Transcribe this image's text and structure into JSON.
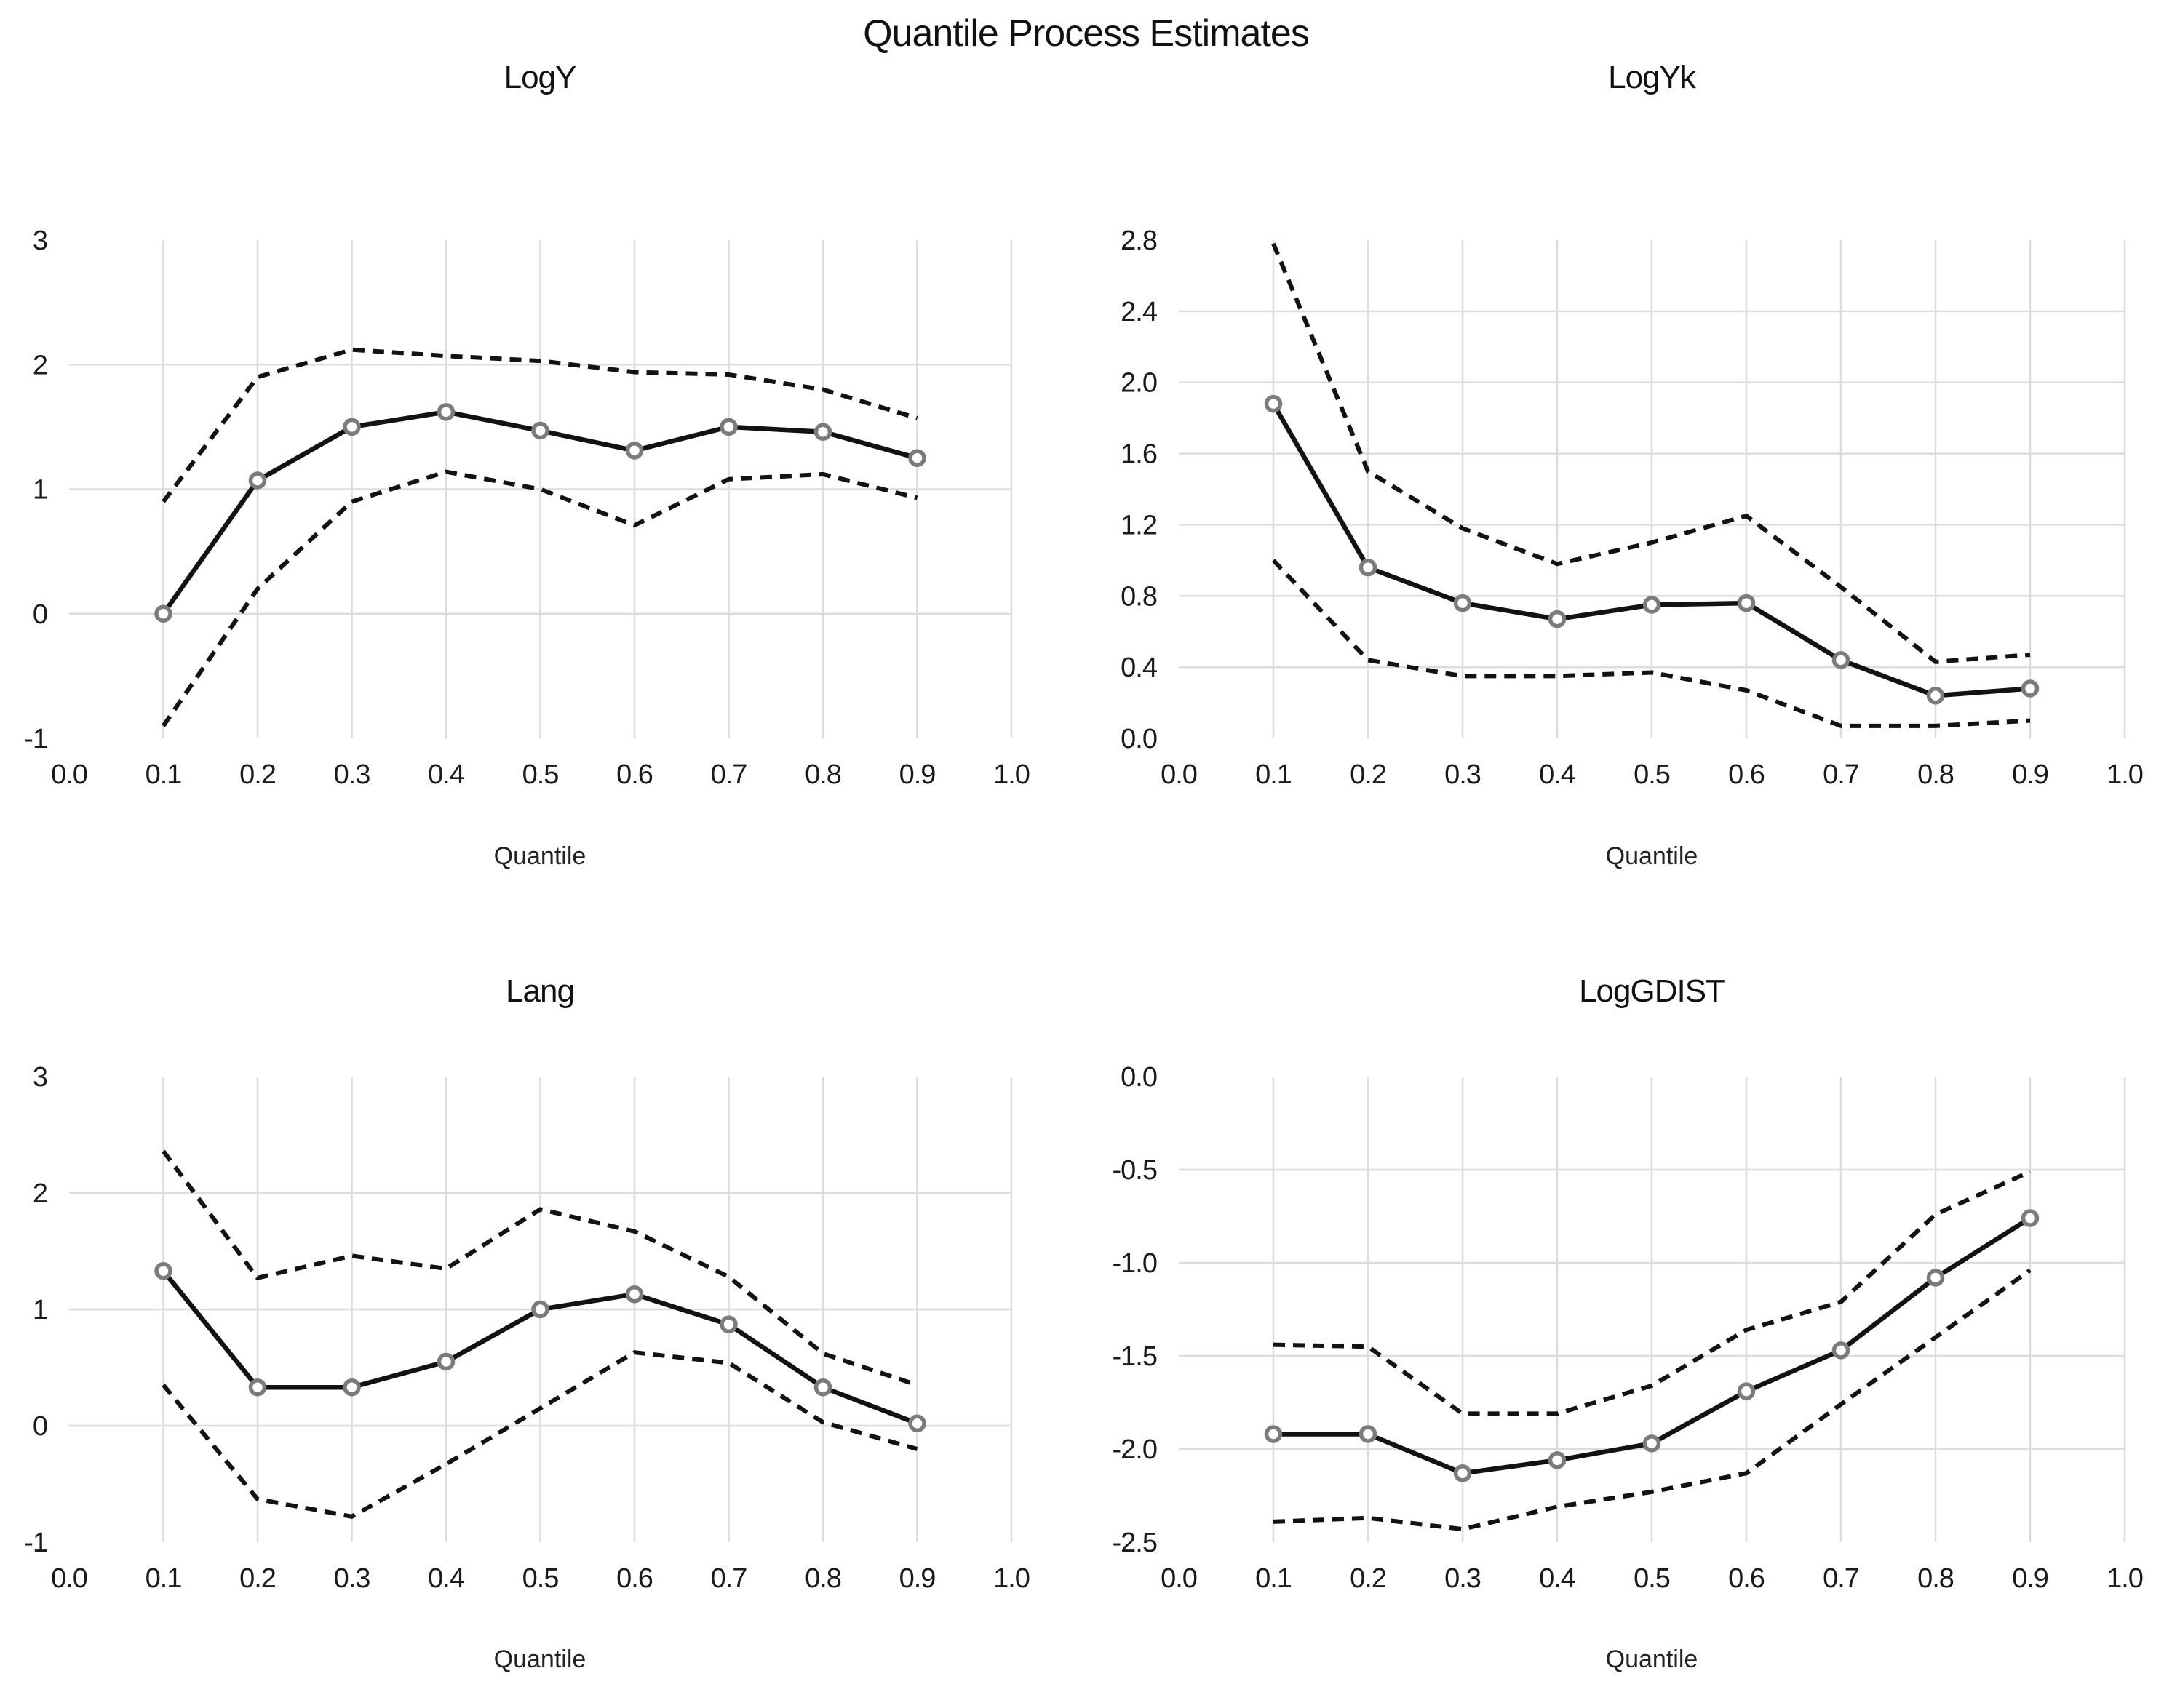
{
  "page": {
    "title": "Quantile Process Estimates"
  },
  "colors": {
    "background": "#ffffff",
    "line": "#121212",
    "band_dash": "#121212",
    "marker_ring": "#7b7b7b",
    "marker_fill": "#ffffff",
    "grid": "#dcdcdc",
    "text": "#1a1a1a"
  },
  "chart_data": [
    {
      "id": "logy",
      "type": "line",
      "title": "LogY",
      "x_label": "Quantile",
      "x": [
        0.1,
        0.2,
        0.3,
        0.4,
        0.5,
        0.6,
        0.7,
        0.8,
        0.9
      ],
      "xticks": [
        0.0,
        0.1,
        0.2,
        0.3,
        0.4,
        0.5,
        0.6,
        0.7,
        0.8,
        0.9,
        1.0
      ],
      "xtick_labels": [
        "0.0",
        "0.1",
        "0.2",
        "0.3",
        "0.4",
        "0.5",
        "0.6",
        "0.7",
        "0.8",
        "0.9",
        "1.0"
      ],
      "ylim": [
        -1,
        3
      ],
      "yticks": [
        -1,
        0,
        1,
        2,
        3
      ],
      "ytick_labels": [
        "-1",
        "0",
        "1",
        "2",
        "3"
      ],
      "grid": true,
      "legend": "none",
      "series": [
        {
          "name": "quantile-estimate",
          "style": "solid",
          "marker": true,
          "values": [
            0.0,
            1.07,
            1.5,
            1.62,
            1.47,
            1.31,
            1.5,
            1.46,
            1.25
          ]
        },
        {
          "name": "upper-confidence-band",
          "style": "dashed",
          "marker": false,
          "values": [
            0.9,
            1.9,
            2.12,
            2.07,
            2.03,
            1.94,
            1.92,
            1.8,
            1.57
          ]
        },
        {
          "name": "lower-confidence-band",
          "style": "dashed",
          "marker": false,
          "values": [
            -0.9,
            0.2,
            0.9,
            1.14,
            1.0,
            0.71,
            1.08,
            1.12,
            0.93
          ]
        }
      ]
    },
    {
      "id": "logyk",
      "type": "line",
      "title": "LogYk",
      "x_label": "Quantile",
      "x": [
        0.1,
        0.2,
        0.3,
        0.4,
        0.5,
        0.6,
        0.7,
        0.8,
        0.9
      ],
      "xticks": [
        0.0,
        0.1,
        0.2,
        0.3,
        0.4,
        0.5,
        0.6,
        0.7,
        0.8,
        0.9,
        1.0
      ],
      "xtick_labels": [
        "0.0",
        "0.1",
        "0.2",
        "0.3",
        "0.4",
        "0.5",
        "0.6",
        "0.7",
        "0.8",
        "0.9",
        "1.0"
      ],
      "ylim": [
        0.0,
        2.8
      ],
      "yticks": [
        0.0,
        0.4,
        0.8,
        1.2,
        1.6,
        2.0,
        2.4,
        2.8
      ],
      "ytick_labels": [
        "0.0",
        "0.4",
        "0.8",
        "1.2",
        "1.6",
        "2.0",
        "2.4",
        "2.8"
      ],
      "grid": true,
      "legend": "none",
      "series": [
        {
          "name": "quantile-estimate",
          "style": "solid",
          "marker": true,
          "values": [
            1.88,
            0.96,
            0.76,
            0.67,
            0.75,
            0.76,
            0.44,
            0.24,
            0.28
          ]
        },
        {
          "name": "upper-confidence-band",
          "style": "dashed",
          "marker": false,
          "values": [
            2.78,
            1.5,
            1.18,
            0.98,
            1.1,
            1.25,
            0.85,
            0.43,
            0.47
          ]
        },
        {
          "name": "lower-confidence-band",
          "style": "dashed",
          "marker": false,
          "values": [
            1.0,
            0.44,
            0.35,
            0.35,
            0.37,
            0.27,
            0.07,
            0.07,
            0.1
          ]
        }
      ]
    },
    {
      "id": "lang",
      "type": "line",
      "title": "Lang",
      "x_label": "Quantile",
      "x": [
        0.1,
        0.2,
        0.3,
        0.4,
        0.5,
        0.6,
        0.7,
        0.8,
        0.9
      ],
      "xticks": [
        0.0,
        0.1,
        0.2,
        0.3,
        0.4,
        0.5,
        0.6,
        0.7,
        0.8,
        0.9,
        1.0
      ],
      "xtick_labels": [
        "0.0",
        "0.1",
        "0.2",
        "0.3",
        "0.4",
        "0.5",
        "0.6",
        "0.7",
        "0.8",
        "0.9",
        "1.0"
      ],
      "ylim": [
        -1,
        3
      ],
      "yticks": [
        -1,
        0,
        1,
        2,
        3
      ],
      "ytick_labels": [
        "-1",
        "0",
        "1",
        "2",
        "3"
      ],
      "grid": true,
      "legend": "none",
      "series": [
        {
          "name": "quantile-estimate",
          "style": "solid",
          "marker": true,
          "values": [
            1.33,
            0.33,
            0.33,
            0.55,
            1.0,
            1.13,
            0.87,
            0.33,
            0.02
          ]
        },
        {
          "name": "upper-confidence-band",
          "style": "dashed",
          "marker": false,
          "values": [
            2.36,
            1.27,
            1.46,
            1.35,
            1.86,
            1.67,
            1.28,
            0.62,
            0.35
          ]
        },
        {
          "name": "lower-confidence-band",
          "style": "dashed",
          "marker": false,
          "values": [
            0.35,
            -0.63,
            -0.78,
            -0.33,
            0.15,
            0.63,
            0.54,
            0.03,
            -0.2
          ]
        }
      ]
    },
    {
      "id": "loggdist",
      "type": "line",
      "title": "LogGDIST",
      "x_label": "Quantile",
      "x": [
        0.1,
        0.2,
        0.3,
        0.4,
        0.5,
        0.6,
        0.7,
        0.8,
        0.9
      ],
      "xticks": [
        0.0,
        0.1,
        0.2,
        0.3,
        0.4,
        0.5,
        0.6,
        0.7,
        0.8,
        0.9,
        1.0
      ],
      "xtick_labels": [
        "0.0",
        "0.1",
        "0.2",
        "0.3",
        "0.4",
        "0.5",
        "0.6",
        "0.7",
        "0.8",
        "0.9",
        "1.0"
      ],
      "ylim": [
        -2.5,
        0.0
      ],
      "yticks": [
        -2.5,
        -2.0,
        -1.5,
        -1.0,
        -0.5,
        0.0
      ],
      "ytick_labels": [
        "-2.5",
        "-2.0",
        "-1.5",
        "-1.0",
        "-0.5",
        "0.0"
      ],
      "grid": true,
      "legend": "none",
      "series": [
        {
          "name": "quantile-estimate",
          "style": "solid",
          "marker": true,
          "values": [
            -1.92,
            -1.92,
            -2.13,
            -2.06,
            -1.97,
            -1.69,
            -1.47,
            -1.08,
            -0.76
          ]
        },
        {
          "name": "upper-confidence-band",
          "style": "dashed",
          "marker": false,
          "values": [
            -1.44,
            -1.45,
            -1.81,
            -1.81,
            -1.66,
            -1.36,
            -1.21,
            -0.74,
            -0.51
          ]
        },
        {
          "name": "lower-confidence-band",
          "style": "dashed",
          "marker": false,
          "values": [
            -2.39,
            -2.37,
            -2.43,
            -2.31,
            -2.23,
            -2.13,
            -1.76,
            -1.4,
            -1.04
          ]
        }
      ]
    }
  ]
}
